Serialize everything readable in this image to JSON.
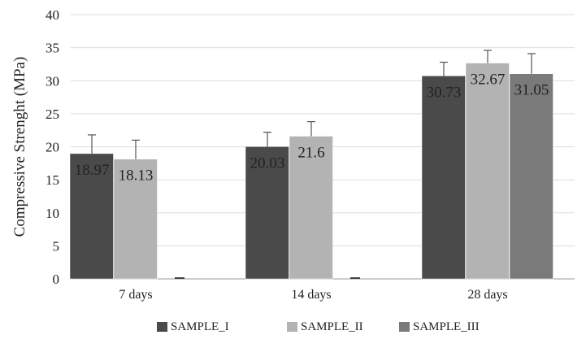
{
  "chart_data": {
    "type": "bar",
    "title": "",
    "xlabel": "",
    "ylabel": "Compressive Strenght (MPa)",
    "ylim": [
      0,
      40
    ],
    "yticks": [
      0,
      5,
      10,
      15,
      20,
      25,
      30,
      35,
      40
    ],
    "grid": "horizontal",
    "legend_position": "bottom",
    "categories": [
      "7 days",
      "14 days",
      "28 days"
    ],
    "series": [
      {
        "name": "SAMPLE_I",
        "color": "#4a4a4a",
        "values": [
          18.97,
          20.03,
          30.73
        ],
        "labels": [
          "18.97",
          "20.03",
          "30.73"
        ],
        "error_upper": [
          21.8,
          22.2,
          32.8
        ]
      },
      {
        "name": "SAMPLE_II",
        "color": "#b3b3b3",
        "values": [
          18.13,
          21.6,
          32.67
        ],
        "labels": [
          "18.13",
          "21.6",
          "32.67"
        ],
        "error_upper": [
          21.0,
          23.8,
          34.6
        ]
      },
      {
        "name": "SAMPLE_III",
        "color": "#7a7a7a",
        "values": [
          0,
          0,
          31.05
        ],
        "labels": [
          "",
          "",
          "31.05"
        ],
        "error_upper": [
          null,
          null,
          34.1
        ]
      }
    ]
  }
}
